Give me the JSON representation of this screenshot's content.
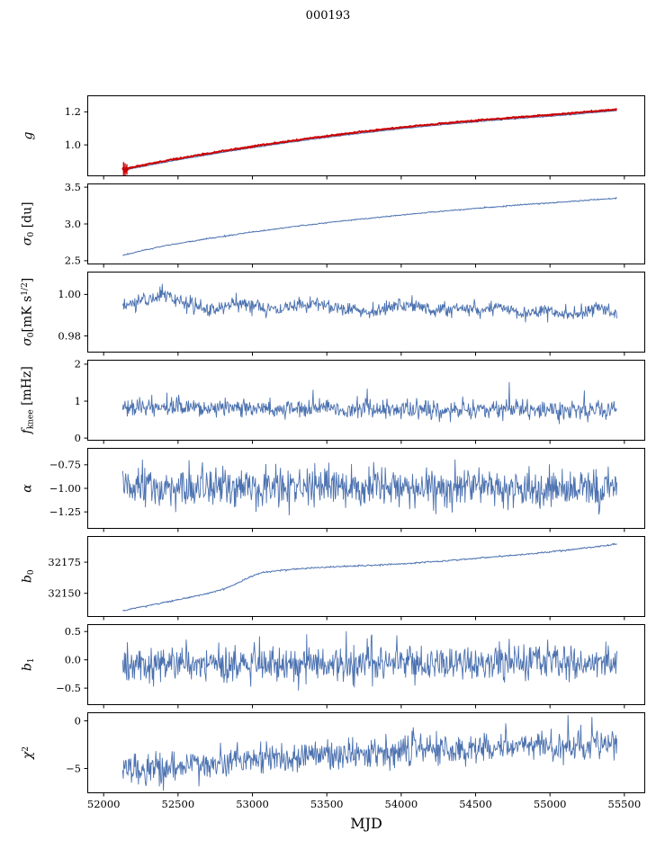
{
  "title": "000193",
  "xlabel": "MJD",
  "chart_data": {
    "type": "line",
    "title": "000193",
    "xlabel": "MJD",
    "axis_color": "#000000",
    "line_color": "#4c72b0",
    "fit_color": "#cc0000",
    "xlim": [
      51890,
      55640
    ],
    "xticks": [
      52000,
      52500,
      53000,
      53500,
      54000,
      54500,
      55000,
      55500
    ],
    "xtick_labels": [
      "52000",
      "52500",
      "53000",
      "53500",
      "54000",
      "54500",
      "55000",
      "55500"
    ],
    "panels": [
      {
        "name": "gain",
        "ylabel_parts": [
          {
            "t": "g",
            "s": "it"
          }
        ],
        "ylim": [
          0.81,
          1.3
        ],
        "yticks": [
          1.0,
          1.2
        ],
        "ytick_labels": [
          "1.0",
          "1.2"
        ],
        "series": [
          {
            "name": "gain-raw",
            "color": "#4c72b0",
            "lw": 1,
            "seed": 11,
            "noise_sd": 0.0012,
            "n": 700,
            "xrange": [
              52128,
              55450
            ],
            "trend": [
              [
                52128,
                0.845
              ],
              [
                52350,
                0.885
              ],
              [
                52600,
                0.925
              ],
              [
                52850,
                0.962
              ],
              [
                53100,
                0.996
              ],
              [
                53350,
                1.028
              ],
              [
                53600,
                1.057
              ],
              [
                53850,
                1.083
              ],
              [
                54100,
                1.107
              ],
              [
                54350,
                1.128
              ],
              [
                54600,
                1.147
              ],
              [
                54850,
                1.164
              ],
              [
                55100,
                1.18
              ],
              [
                55300,
                1.196
              ],
              [
                55450,
                1.207
              ]
            ]
          },
          {
            "name": "gain-fit",
            "color": "#cc0000",
            "lw": 2.0,
            "seed": 12,
            "noise_sd": 0.0018,
            "n": 700,
            "xrange": [
              52128,
              55450
            ],
            "trend": [
              [
                52128,
                0.852
              ],
              [
                52350,
                0.893
              ],
              [
                52600,
                0.933
              ],
              [
                52850,
                0.97
              ],
              [
                53100,
                1.004
              ],
              [
                53350,
                1.036
              ],
              [
                53600,
                1.065
              ],
              [
                53850,
                1.091
              ],
              [
                54100,
                1.115
              ],
              [
                54350,
                1.136
              ],
              [
                54600,
                1.155
              ],
              [
                54850,
                1.172
              ],
              [
                55100,
                1.188
              ],
              [
                55300,
                1.204
              ],
              [
                55450,
                1.215
              ]
            ]
          }
        ],
        "errorbars": {
          "color": "#cc0000",
          "x": [
            52134,
            52144,
            52156
          ],
          "y": [
            0.856,
            0.84,
            0.851
          ],
          "yerr": [
            0.04,
            0.048,
            0.032
          ]
        }
      },
      {
        "name": "sigma0-du",
        "ylabel_parts": [
          {
            "t": "σ",
            "s": "it"
          },
          {
            "t": "0",
            "s": "sub"
          },
          {
            "t": " [du]"
          }
        ],
        "ylim": [
          2.45,
          3.55
        ],
        "yticks": [
          2.5,
          3.0,
          3.5
        ],
        "ytick_labels": [
          "2.5",
          "3.0",
          "3.5"
        ],
        "series": [
          {
            "name": "sigma0-du",
            "color": "#4c72b0",
            "lw": 1,
            "seed": 21,
            "noise_sd": 0.004,
            "n": 700,
            "xrange": [
              52128,
              55450
            ],
            "trend": [
              [
                52128,
                2.575
              ],
              [
                52400,
                2.7
              ],
              [
                52700,
                2.8
              ],
              [
                53000,
                2.89
              ],
              [
                53300,
                2.97
              ],
              [
                53600,
                3.04
              ],
              [
                53900,
                3.1
              ],
              [
                54200,
                3.16
              ],
              [
                54500,
                3.21
              ],
              [
                54800,
                3.26
              ],
              [
                55100,
                3.3
              ],
              [
                55300,
                3.33
              ],
              [
                55450,
                3.35
              ]
            ]
          }
        ]
      },
      {
        "name": "sigma0-mk",
        "ylabel_parts": [
          {
            "t": "σ",
            "s": "it"
          },
          {
            "t": "0",
            "s": "sub"
          },
          {
            "t": "[mK s"
          },
          {
            "t": "1/2",
            "s": "sup"
          },
          {
            "t": "]"
          }
        ],
        "ylim": [
          0.972,
          1.011
        ],
        "yticks": [
          0.98,
          1.0
        ],
        "ytick_labels": [
          "0.98",
          "1.00"
        ],
        "series": [
          {
            "name": "white-noise",
            "color": "#4c72b0",
            "lw": 0.9,
            "seed": 31,
            "noise_sd": 0.0018,
            "n": 850,
            "xrange": [
              52128,
              55450
            ],
            "trend": [
              [
                52128,
                0.994
              ],
              [
                52250,
                0.997
              ],
              [
                52400,
                1.0
              ],
              [
                52550,
                0.996
              ],
              [
                52700,
                0.992
              ],
              [
                52850,
                0.995
              ],
              [
                53000,
                0.9955
              ],
              [
                53150,
                0.992
              ],
              [
                53300,
                0.9945
              ],
              [
                53450,
                0.996
              ],
              [
                53600,
                0.9935
              ],
              [
                53800,
                0.9915
              ],
              [
                53950,
                0.995
              ],
              [
                54100,
                0.9945
              ],
              [
                54250,
                0.992
              ],
              [
                54400,
                0.9935
              ],
              [
                54550,
                0.9925
              ],
              [
                54700,
                0.9945
              ],
              [
                54850,
                0.99
              ],
              [
                55000,
                0.9925
              ],
              [
                55150,
                0.9895
              ],
              [
                55300,
                0.994
              ],
              [
                55450,
                0.991
              ]
            ]
          }
        ]
      },
      {
        "name": "fknee",
        "ylabel_parts": [
          {
            "t": "f",
            "s": "it"
          },
          {
            "t": "knee",
            "s": "sub"
          },
          {
            "t": " [mHz]"
          }
        ],
        "ylim": [
          -0.07,
          2.12
        ],
        "yticks": [
          0,
          1,
          2
        ],
        "ytick_labels": [
          "0",
          "1",
          "2"
        ],
        "series": [
          {
            "name": "fknee",
            "color": "#4c72b0",
            "lw": 0.9,
            "seed": 41,
            "noise_sd": 0.125,
            "n": 850,
            "xrange": [
              52128,
              55450
            ],
            "spike": {
              "prob": 0.007,
              "amp": 0.65
            },
            "trend": [
              [
                52128,
                0.83
              ],
              [
                53000,
                0.8
              ],
              [
                54000,
                0.79
              ],
              [
                55450,
                0.76
              ]
            ]
          }
        ]
      },
      {
        "name": "alpha",
        "ylabel_parts": [
          {
            "t": "α",
            "s": "it"
          }
        ],
        "ylim": [
          -1.43,
          -0.57
        ],
        "yticks": [
          -1.25,
          -1.0,
          -0.75
        ],
        "ytick_labels": [
          "−1.25",
          "−1.00",
          "−0.75"
        ],
        "series": [
          {
            "name": "alpha",
            "color": "#4c72b0",
            "lw": 0.9,
            "seed": 51,
            "noise_sd": 0.105,
            "n": 850,
            "xrange": [
              52128,
              55450
            ],
            "trend": [
              [
                52128,
                -1.0
              ],
              [
                55450,
                -1.0
              ]
            ]
          }
        ]
      },
      {
        "name": "b0",
        "ylabel_parts": [
          {
            "t": "b",
            "s": "it"
          },
          {
            "t": "0",
            "s": "sub"
          }
        ],
        "ylim": [
          32131,
          32196
        ],
        "yticks": [
          32150,
          32175
        ],
        "ytick_labels": [
          "32150",
          "32175"
        ],
        "series": [
          {
            "name": "b0",
            "color": "#4c72b0",
            "lw": 1,
            "seed": 61,
            "noise_sd": 0.3,
            "n": 700,
            "xrange": [
              52128,
              55450
            ],
            "trend": [
              [
                52128,
                32136
              ],
              [
                52250,
                32139
              ],
              [
                52400,
                32142.5
              ],
              [
                52550,
                32146
              ],
              [
                52700,
                32150
              ],
              [
                52820,
                32154
              ],
              [
                52900,
                32158
              ],
              [
                52980,
                32163
              ],
              [
                53060,
                32166.5
              ],
              [
                53160,
                32168
              ],
              [
                53300,
                32169.5
              ],
              [
                53500,
                32171
              ],
              [
                53700,
                32172
              ],
              [
                53900,
                32173
              ],
              [
                54100,
                32174.5
              ],
              [
                54300,
                32176
              ],
              [
                54500,
                32178
              ],
              [
                54700,
                32180
              ],
              [
                54900,
                32182
              ],
              [
                55100,
                32184.5
              ],
              [
                55250,
                32186.5
              ],
              [
                55450,
                32189.5
              ]
            ]
          }
        ]
      },
      {
        "name": "b1",
        "ylabel_parts": [
          {
            "t": "b",
            "s": "it"
          },
          {
            "t": "1",
            "s": "sub"
          }
        ],
        "ylim": [
          -0.8,
          0.63
        ],
        "yticks": [
          -0.5,
          0.0,
          0.5
        ],
        "ytick_labels": [
          "−0.5",
          "0.0",
          "0.5"
        ],
        "series": [
          {
            "name": "b1",
            "color": "#4c72b0",
            "lw": 0.9,
            "seed": 71,
            "noise_sd": 0.165,
            "n": 850,
            "xrange": [
              52128,
              55450
            ],
            "spike": {
              "prob": 0.003,
              "amp": 0.3,
              "bipolar": true
            },
            "trend": [
              [
                52128,
                -0.07
              ],
              [
                55450,
                -0.04
              ]
            ]
          }
        ]
      },
      {
        "name": "chi2",
        "ylabel_parts": [
          {
            "t": "χ",
            "s": "it"
          },
          {
            "t": "2",
            "s": "sup"
          }
        ],
        "ylim": [
          -7.6,
          0.9
        ],
        "yticks": [
          -5,
          0
        ],
        "ytick_labels": [
          "−5",
          "0"
        ],
        "series": [
          {
            "name": "chi2",
            "color": "#4c72b0",
            "lw": 0.9,
            "seed": 81,
            "noise_sd": 0.8,
            "n": 850,
            "xrange": [
              52128,
              55450
            ],
            "trend": [
              [
                52128,
                -5.0
              ],
              [
                52350,
                -5.1
              ],
              [
                52600,
                -4.6
              ],
              [
                52850,
                -4.2
              ],
              [
                53100,
                -3.9
              ],
              [
                53400,
                -3.6
              ],
              [
                53700,
                -3.35
              ],
              [
                54000,
                -3.1
              ],
              [
                54300,
                -2.95
              ],
              [
                54600,
                -2.8
              ],
              [
                54900,
                -2.65
              ],
              [
                55150,
                -2.55
              ],
              [
                55450,
                -2.45
              ]
            ]
          }
        ]
      }
    ]
  }
}
